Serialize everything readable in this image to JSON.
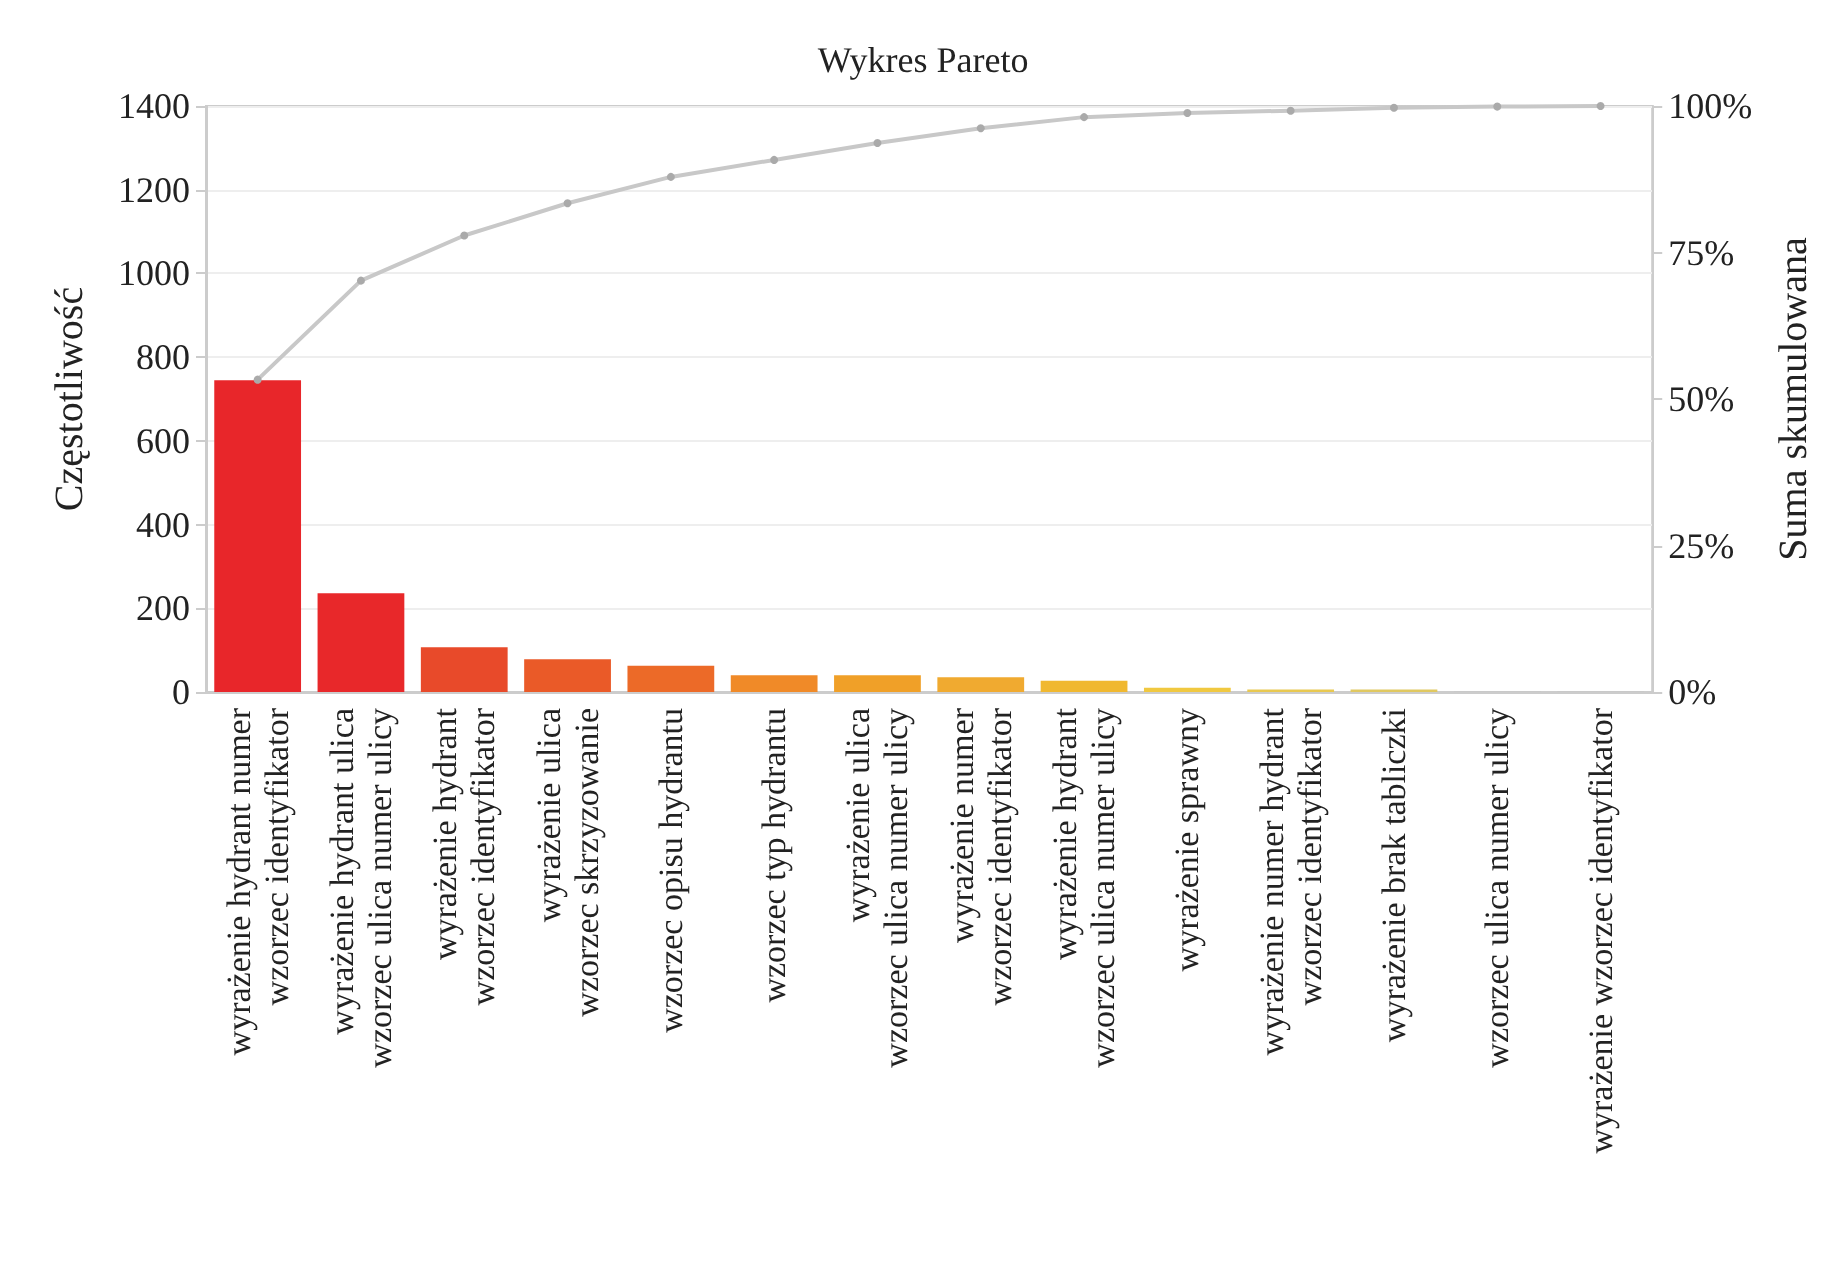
{
  "chart_data": {
    "type": "bar",
    "title": "Wykres Pareto",
    "ylabel": "Częstotliwość",
    "y2label": "Suma skumulowana",
    "categories": [
      "wyrażenie hydrant numer\nwzorzec identyfikator",
      "wyrażenie hydrant ulica\nwzorzec ulica numer ulicy",
      "wyrażenie hydrant\nwzorzec identyfikator",
      "wyrażenie ulica\nwzorzec skrzyzowanie",
      "wzorzec opisu hydrantu",
      "wzorzec typ hydrantu",
      "wyrażenie ulica\nwzorzec ulica numer ulicy",
      "wyrażenie numer\nwzorzec identyfikator",
      "wyrażenie hydrant\nwzorzec ulica numer ulicy",
      "wyrażenie sprawny",
      "wyrażenie numer hydrant\nwzorzec identyfikator",
      "wyrażenie brak tabliczki",
      "wzorzec ulica numer ulicy",
      "wyrażenie wzorzec identyfikator"
    ],
    "series": [
      {
        "values": [
          745,
          236,
          107,
          78,
          63,
          40,
          40,
          35,
          27,
          10,
          6,
          6,
          2,
          2
        ],
        "colors": [
          "#e8262a",
          "#e8282a",
          "#e84a2a",
          "#ea5a28",
          "#ec6a28",
          "#f08a28",
          "#f0a028",
          "#f0aa30",
          "#f0b830",
          "#f0c840",
          "#e8c850",
          "#e0c860",
          "#c8c8c8",
          "#c8c8c8"
        ]
      },
      {
        "type": "line",
        "axis": "y2",
        "color": "#c8c8c8",
        "marker": "circle",
        "values": [
          53.3,
          70.2,
          77.9,
          83.4,
          87.9,
          90.8,
          93.7,
          96.2,
          98.1,
          98.8,
          99.2,
          99.7,
          99.9,
          100
        ]
      }
    ],
    "ylim": [
      0,
      1400
    ],
    "yticks": [
      0,
      200,
      400,
      600,
      800,
      1000,
      1200,
      1400
    ],
    "y2lim": [
      0,
      100
    ],
    "y2ticks": [
      {
        "value": 0,
        "label": "0%"
      },
      {
        "value": 25,
        "label": "25%"
      },
      {
        "value": 50,
        "label": "50%"
      },
      {
        "value": 75,
        "label": "75%"
      },
      {
        "value": 100,
        "label": "100%"
      }
    ],
    "grid": "y"
  }
}
